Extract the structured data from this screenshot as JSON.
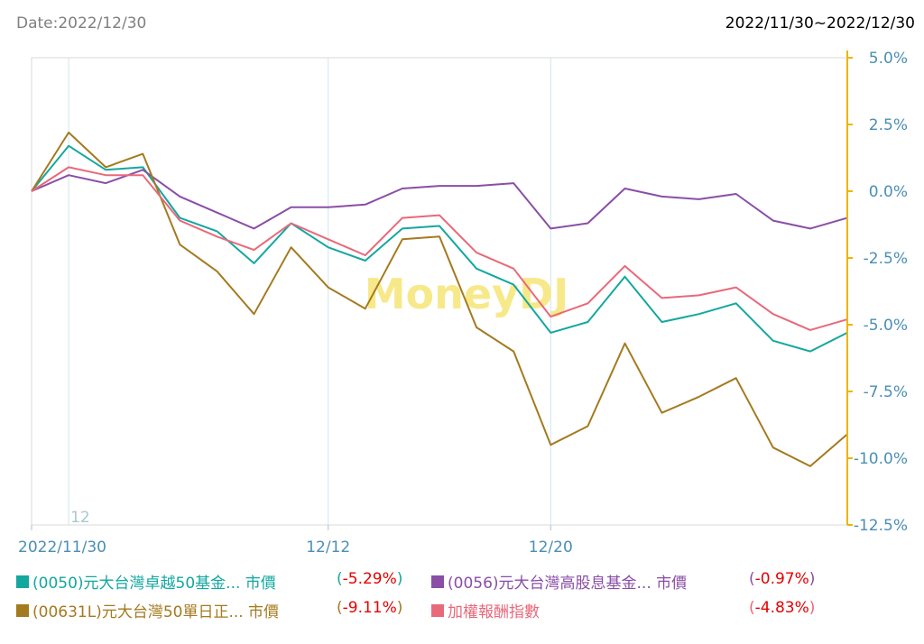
{
  "header": {
    "date_label": "Date:2022/12/30",
    "range_label": "2022/11/30~2022/12/30"
  },
  "watermark": "MoneyDJ",
  "month_marker": "12",
  "colors": {
    "axis_right": "#f0b400",
    "grid": "#cde6ee",
    "tick_text": "#4a8fb4",
    "change_negative": "#e60000",
    "watermark": "#f7e98a"
  },
  "chart_data": {
    "type": "line",
    "x": [
      "2022/11/30",
      "2022/12/01",
      "2022/12/02",
      "2022/12/05",
      "2022/12/06",
      "2022/12/07",
      "2022/12/08",
      "2022/12/09",
      "2022/12/12",
      "2022/12/13",
      "2022/12/14",
      "2022/12/15",
      "2022/12/16",
      "2022/12/19",
      "2022/12/20",
      "2022/12/21",
      "2022/12/22",
      "2022/12/23",
      "2022/12/26",
      "2022/12/27",
      "2022/12/28",
      "2022/12/29",
      "2022/12/30"
    ],
    "x_tick_labels": [
      {
        "index": 0,
        "label": "2022/11/30"
      },
      {
        "index": 8,
        "label": "12/12"
      },
      {
        "index": 14,
        "label": "12/20"
      }
    ],
    "ylim": [
      -12.5,
      5.0
    ],
    "y_ticks": [
      5.0,
      2.5,
      0.0,
      -2.5,
      -5.0,
      -7.5,
      -10.0,
      -12.5
    ],
    "y_tick_labels": [
      "5.0%",
      "2.5%",
      "0.0%",
      "-2.5%",
      "-5.0%",
      "-7.5%",
      "-10.0%",
      "-12.5%"
    ],
    "grid": true,
    "legend_position": "bottom",
    "series": [
      {
        "name": "(0050)元大台灣卓越50基金... 市價",
        "change": "-5.29%",
        "color": "#14a7a0",
        "values": [
          0.0,
          1.7,
          0.8,
          0.9,
          -1.0,
          -1.5,
          -2.7,
          -1.2,
          -2.1,
          -2.6,
          -1.4,
          -1.3,
          -2.9,
          -3.5,
          -5.3,
          -4.9,
          -3.2,
          -4.9,
          -4.6,
          -4.2,
          -5.6,
          -6.0,
          -5.3
        ]
      },
      {
        "name": "(0056)元大台灣高股息基金... 市價",
        "change": "-0.97%",
        "color": "#8a4ea6",
        "values": [
          0.0,
          0.6,
          0.3,
          0.8,
          -0.2,
          -0.8,
          -1.4,
          -0.6,
          -0.6,
          -0.5,
          0.1,
          0.2,
          0.2,
          0.3,
          -1.4,
          -1.2,
          0.1,
          -0.2,
          -0.3,
          -0.1,
          -1.1,
          -1.4,
          -1.0
        ]
      },
      {
        "name": "(00631L)元大台灣50單日正... 市價",
        "change": "-9.11%",
        "color": "#a47a1f",
        "values": [
          0.0,
          2.2,
          0.9,
          1.4,
          -2.0,
          -3.0,
          -4.6,
          -2.1,
          -3.6,
          -4.4,
          -1.8,
          -1.7,
          -5.1,
          -6.0,
          -9.5,
          -8.8,
          -5.7,
          -8.3,
          -7.7,
          -7.0,
          -9.6,
          -10.3,
          -9.1
        ]
      },
      {
        "name": "加權報酬指數",
        "change": "-4.83%",
        "color": "#e8697a",
        "values": [
          0.0,
          0.9,
          0.6,
          0.6,
          -1.1,
          -1.7,
          -2.2,
          -1.2,
          -1.8,
          -2.4,
          -1.0,
          -0.9,
          -2.3,
          -2.9,
          -4.7,
          -4.2,
          -2.8,
          -4.0,
          -3.9,
          -3.6,
          -4.6,
          -5.2,
          -4.8
        ]
      }
    ]
  }
}
